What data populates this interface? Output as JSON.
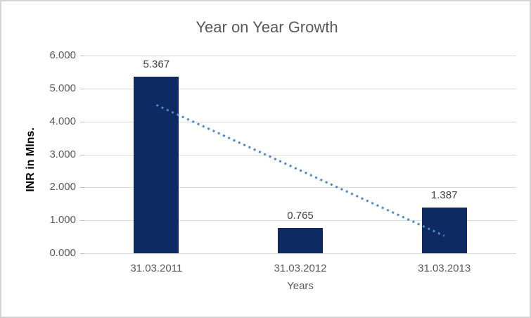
{
  "chart_data": {
    "type": "bar",
    "title": "Year on Year Growth",
    "xlabel": "Years",
    "ylabel": "INR in Mlns.",
    "categories": [
      "31.03.2011",
      "31.03.2012",
      "31.03.2013"
    ],
    "values": [
      5.367,
      0.765,
      1.387
    ],
    "data_labels": [
      "5.367",
      "0.765",
      "1.387"
    ],
    "ylim": [
      0,
      6
    ],
    "yticks": [
      "0.000",
      "1.000",
      "2.000",
      "3.000",
      "4.000",
      "5.000",
      "6.000"
    ],
    "grid": "horizontal",
    "legend": "none",
    "trendline": {
      "type": "linear",
      "style": "dotted",
      "y_start": 4.5,
      "y_end": 0.53
    },
    "colors": {
      "bar": "#0d2a63",
      "trendline": "#4d88c7",
      "title_text": "#595959",
      "axis_text": "#595959",
      "data_label_text": "#404040",
      "axis_title_text": "#000000",
      "gridline": "#d9d9d9",
      "minor_tick": "#bfbfbf",
      "border": "#d4d4d4",
      "background": "#ffffff"
    }
  }
}
